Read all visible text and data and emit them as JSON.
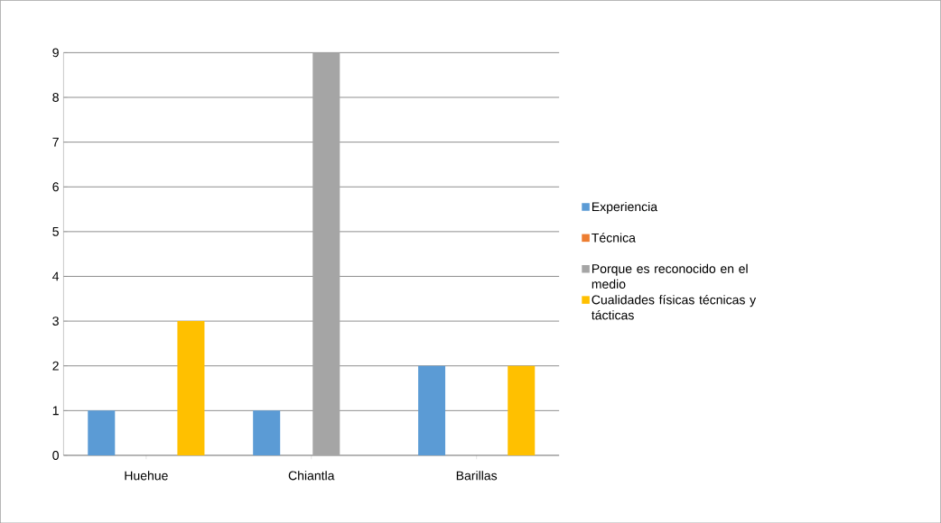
{
  "chart_data": {
    "type": "bar",
    "categories": [
      "Huehue",
      "Chiantla",
      "Barillas"
    ],
    "series": [
      {
        "name": "Experiencia",
        "color": "#5b9bd5",
        "values": [
          1,
          1,
          2
        ]
      },
      {
        "name": "Técnica",
        "color": "#ed7d31",
        "values": [
          0,
          0,
          0
        ]
      },
      {
        "name": "Porque es reconocido en el medio",
        "color": "#a5a5a5",
        "values": [
          0,
          9,
          0
        ]
      },
      {
        "name": "Cualidades físicas técnicas y tácticas",
        "color": "#ffc000",
        "values": [
          3,
          0,
          2
        ]
      }
    ],
    "ylim": [
      0,
      9
    ],
    "yticks": [
      0,
      1,
      2,
      3,
      4,
      5,
      6,
      7,
      8,
      9
    ],
    "grid": "y",
    "legend": "right"
  }
}
